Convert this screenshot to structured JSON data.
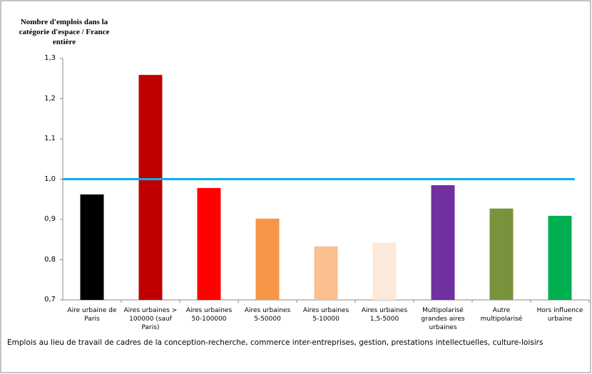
{
  "chart_data": {
    "type": "bar",
    "y_label": "Nombre d'emplois dans la\ncatégorie d'espace / France\nentière",
    "note": "Emplois au lieu de travail de cadres de la conception-recherche, commerce inter-entreprises, gestion, prestations intellectuelles, culture-loisirs",
    "categories": [
      "Aire urbaine de\nParis",
      "Aires urbaines >\n100000 (sauf\nParis)",
      "Aires urbaines\n50-100000",
      "Aires urbaines\n5-50000",
      "Aires urbaines\n5-10000",
      "Aires urbaines\n1,5-5000",
      "Multipolarisé\ngrandes aires\nurbaines",
      "Autre\nmultipolarisé",
      "Hors influence\nurbaine"
    ],
    "values": [
      0.962,
      1.259,
      0.978,
      0.902,
      0.833,
      0.842,
      0.985,
      0.927,
      0.909
    ],
    "colors": [
      "#000000",
      "#c00000",
      "#ff0000",
      "#f79646",
      "#fac090",
      "#fde9d9",
      "#7030a0",
      "#77933c",
      "#00b050"
    ],
    "reference_line": {
      "value": 1,
      "color": "#00b0f0"
    },
    "ylim": [
      0.7,
      1.3
    ],
    "yticks": [
      {
        "value": 0.7,
        "label": "0,7"
      },
      {
        "value": 0.8,
        "label": "0,8"
      },
      {
        "value": 0.9,
        "label": "0,9"
      },
      {
        "value": 1.0,
        "label": "1,0"
      },
      {
        "value": 1.1,
        "label": "1,1"
      },
      {
        "value": 1.2,
        "label": "1,2"
      },
      {
        "value": 1.3,
        "label": "1,3"
      }
    ],
    "grid": false
  }
}
